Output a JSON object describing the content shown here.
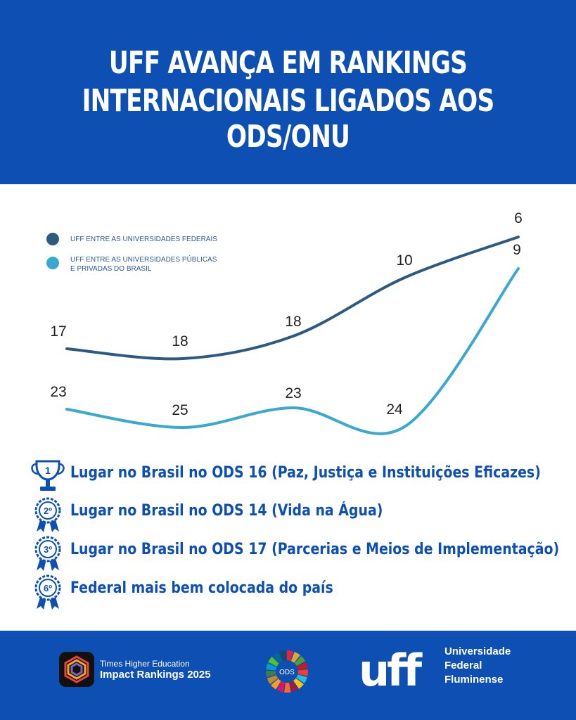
{
  "header": {
    "title_line1": "UFF AVANÇA EM RANKINGS",
    "title_line2": "INTERNACIONAIS LIGADOS AOS ODS/ONU"
  },
  "colors": {
    "brand_blue": "#0d4fb3",
    "series_federal": "#2d5a80",
    "series_brasil": "#39a9cf"
  },
  "chart_data": {
    "type": "line",
    "title": "",
    "xlabel": "",
    "ylabel": "",
    "y_inverted": true,
    "grid": false,
    "legend_position": "top-left",
    "series": [
      {
        "name": "UFF ENTRE AS UNIVERSIDADES FEDERAIS",
        "values": [
          17,
          18,
          18,
          10,
          6
        ],
        "labels": [
          "17",
          "18",
          "18",
          "10",
          "6"
        ]
      },
      {
        "name": "UFF ENTRE AS UNIVERSIDADES PÚBLICAS E PRIVADAS DO BRASIL",
        "values": [
          23,
          25,
          23,
          24,
          9
        ],
        "labels": [
          "23",
          "25",
          "23",
          "24",
          "9"
        ]
      }
    ],
    "legend": [
      {
        "line1": "UFF ENTRE AS UNIVERSIDADES FEDERAIS",
        "line2": ""
      },
      {
        "line1": "UFF ENTRE AS UNIVERSIDADES PÚBLICAS",
        "line2": "E PRIVADAS DO BRASIL"
      }
    ]
  },
  "achievements": [
    {
      "medal": "1",
      "icon": "trophy-icon",
      "text": "Lugar no Brasil no ODS 16 (Paz, Justiça e Instituições Eficazes)"
    },
    {
      "medal": "2º",
      "icon": "rosette-icon",
      "text": "Lugar no Brasil no ODS 14 (Vida na Água)"
    },
    {
      "medal": "3º",
      "icon": "rosette-icon",
      "text": "Lugar no Brasil no ODS 17 (Parcerias e Meios de Implementação)"
    },
    {
      "medal": "6º",
      "icon": "rosette-icon",
      "text": "Federal mais bem colocada do país"
    }
  ],
  "footer": {
    "the_line1": "Times Higher Education",
    "the_line2": "Impact Rankings 2025",
    "ods_label": "ODS",
    "uff_logo": "uff",
    "uff_name": [
      "Universidade",
      "Federal",
      "Fluminense"
    ]
  }
}
